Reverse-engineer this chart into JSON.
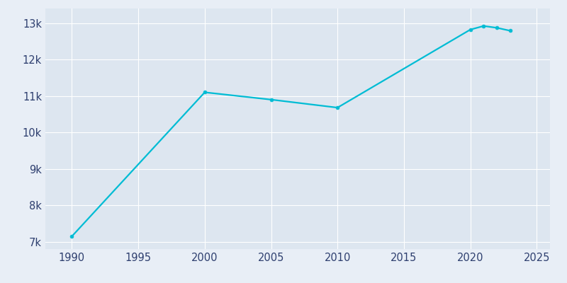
{
  "years": [
    1990,
    2000,
    2005,
    2010,
    2020,
    2021,
    2022,
    2023
  ],
  "population": [
    7150,
    11100,
    10900,
    10680,
    12820,
    12920,
    12870,
    12790
  ],
  "line_color": "#00BCD4",
  "marker": "o",
  "marker_size": 3.5,
  "bg_color": "#E8EEF6",
  "plot_bg_color": "#DDE6F0",
  "grid_color": "#FFFFFF",
  "tick_color": "#2E3F6F",
  "xlim": [
    1988,
    2026
  ],
  "ylim": [
    6800,
    13400
  ],
  "yticks": [
    7000,
    8000,
    9000,
    10000,
    11000,
    12000,
    13000
  ],
  "ytick_labels": [
    "7k",
    "8k",
    "9k",
    "10k",
    "11k",
    "12k",
    "13k"
  ],
  "xticks": [
    1990,
    1995,
    2000,
    2005,
    2010,
    2015,
    2020,
    2025
  ]
}
